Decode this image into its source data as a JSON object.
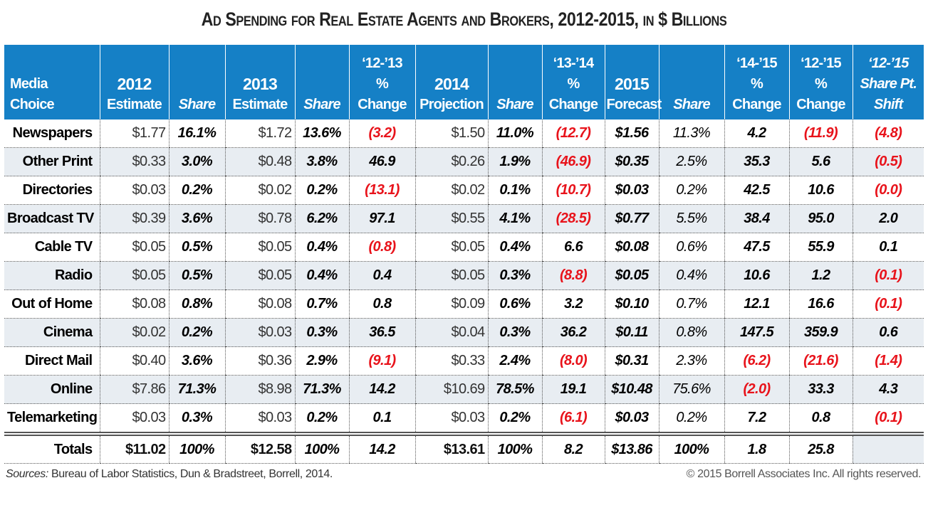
{
  "title": "Ad Spending for Real Estate Agents and Brokers, 2012-2015, in $ Billions",
  "headers": [
    {
      "top": "",
      "mid": "Media",
      "bot": "Choice",
      "italic": false
    },
    {
      "top": "",
      "mid": "2012",
      "bot": "Estimate",
      "italic": false
    },
    {
      "top": "",
      "mid": "",
      "bot": "Share",
      "italic": true
    },
    {
      "top": "",
      "mid": "2013",
      "bot": "Estimate",
      "italic": false
    },
    {
      "top": "",
      "mid": "",
      "bot": "Share",
      "italic": true
    },
    {
      "top": "‘12-’13",
      "mid": "%",
      "bot": "Change",
      "italic": false
    },
    {
      "top": "",
      "mid": "2014",
      "bot": "Projection",
      "italic": false
    },
    {
      "top": "",
      "mid": "",
      "bot": "Share",
      "italic": true
    },
    {
      "top": "‘13-’14",
      "mid": "%",
      "bot": "Change",
      "italic": false
    },
    {
      "top": "",
      "mid": "2015",
      "bot": "Forecast",
      "italic": false
    },
    {
      "top": "",
      "mid": "",
      "bot": "Share",
      "italic": true
    },
    {
      "top": "‘14-’15",
      "mid": "%",
      "bot": "Change",
      "italic": false
    },
    {
      "top": "‘12-’15",
      "mid": "%",
      "bot": "Change",
      "italic": false
    },
    {
      "top": "‘12-’15",
      "mid": "Share Pt.",
      "bot": "Shift",
      "italic": true
    }
  ],
  "rows": [
    [
      "Newspapers",
      "$1.77",
      "16.1%",
      "$1.72",
      "13.6%",
      "(3.2)",
      "$1.50",
      "11.0%",
      "(12.7)",
      "$1.56",
      "11.3%",
      "4.2",
      "(11.9)",
      "(4.8)"
    ],
    [
      "Other Print",
      "$0.33",
      "3.0%",
      "$0.48",
      "3.8%",
      "46.9",
      "$0.26",
      "1.9%",
      "(46.9)",
      "$0.35",
      "2.5%",
      "35.3",
      "5.6",
      "(0.5)"
    ],
    [
      "Directories",
      "$0.03",
      "0.2%",
      "$0.02",
      "0.2%",
      "(13.1)",
      "$0.02",
      "0.1%",
      "(10.7)",
      "$0.03",
      "0.2%",
      "42.5",
      "10.6",
      "(0.0)"
    ],
    [
      "Broadcast TV",
      "$0.39",
      "3.6%",
      "$0.78",
      "6.2%",
      "97.1",
      "$0.55",
      "4.1%",
      "(28.5)",
      "$0.77",
      "5.5%",
      "38.4",
      "95.0",
      "2.0"
    ],
    [
      "Cable TV",
      "$0.05",
      "0.5%",
      "$0.05",
      "0.4%",
      "(0.8)",
      "$0.05",
      "0.4%",
      "6.6",
      "$0.08",
      "0.6%",
      "47.5",
      "55.9",
      "0.1"
    ],
    [
      "Radio",
      "$0.05",
      "0.5%",
      "$0.05",
      "0.4%",
      "0.4",
      "$0.05",
      "0.3%",
      "(8.8)",
      "$0.05",
      "0.4%",
      "10.6",
      "1.2",
      "(0.1)"
    ],
    [
      "Out of Home",
      "$0.08",
      "0.8%",
      "$0.08",
      "0.7%",
      "0.8",
      "$0.09",
      "0.6%",
      "3.2",
      "$0.10",
      "0.7%",
      "12.1",
      "16.6",
      "(0.1)"
    ],
    [
      "Cinema",
      "$0.02",
      "0.2%",
      "$0.03",
      "0.3%",
      "36.5",
      "$0.04",
      "0.3%",
      "36.2",
      "$0.11",
      "0.8%",
      "147.5",
      "359.9",
      "0.6"
    ],
    [
      "Direct Mail",
      "$0.40",
      "3.6%",
      "$0.36",
      "2.9%",
      "(9.1)",
      "$0.33",
      "2.4%",
      "(8.0)",
      "$0.31",
      "2.3%",
      "(6.2)",
      "(21.6)",
      "(1.4)"
    ],
    [
      "Online",
      "$7.86",
      "71.3%",
      "$8.98",
      "71.3%",
      "14.2",
      "$10.69",
      "78.5%",
      "19.1",
      "$10.48",
      "75.6%",
      "(2.0)",
      "33.3",
      "4.3"
    ],
    [
      "Telemarketing",
      "$0.03",
      "0.3%",
      "$0.03",
      "0.2%",
      "0.1",
      "$0.03",
      "0.2%",
      "(6.1)",
      "$0.03",
      "0.2%",
      "7.2",
      "0.8",
      "(0.1)"
    ]
  ],
  "totals": [
    "Totals",
    "$11.02",
    "100%",
    "$12.58",
    "100%",
    "14.2",
    "$13.61",
    "100%",
    "8.2",
    "$13.86",
    "100%",
    "1.8",
    "25.8",
    ""
  ],
  "footer": {
    "sources_label": "Sources:",
    "sources_text": " Bureau of Labor Statistics, Dun & Bradstreet, Borrell, 2014.",
    "copyright": "© 2015 Borrell Associates Inc. All rights reserved."
  },
  "colors": {
    "header_bg": "#1580c6",
    "negative": "#e8131b",
    "alt_row": "#e8edf2"
  }
}
